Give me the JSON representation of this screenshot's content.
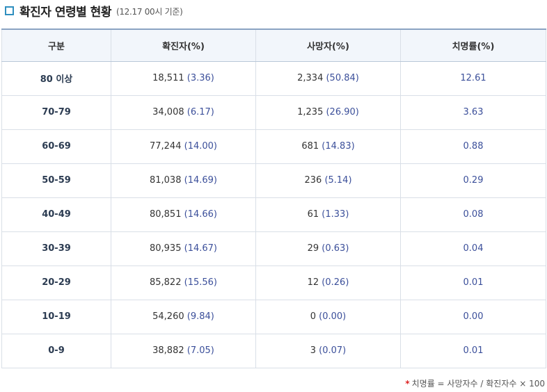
{
  "header": {
    "title": "확진자 연령별 현황",
    "subtitle": "(12.17 00시 기준)"
  },
  "table": {
    "columns": [
      "구분",
      "확진자(%)",
      "사망자(%)",
      "치명률(%)"
    ],
    "rows": [
      {
        "age": "80 이상",
        "confirmed": "18,511",
        "confirmed_pct": "(3.36)",
        "deaths": "2,334",
        "deaths_pct": "(50.84)",
        "fatality": "12.61"
      },
      {
        "age": "70-79",
        "confirmed": "34,008",
        "confirmed_pct": "(6.17)",
        "deaths": "1,235",
        "deaths_pct": "(26.90)",
        "fatality": "3.63"
      },
      {
        "age": "60-69",
        "confirmed": "77,244",
        "confirmed_pct": "(14.00)",
        "deaths": "681",
        "deaths_pct": "(14.83)",
        "fatality": "0.88"
      },
      {
        "age": "50-59",
        "confirmed": "81,038",
        "confirmed_pct": "(14.69)",
        "deaths": "236",
        "deaths_pct": "(5.14)",
        "fatality": "0.29"
      },
      {
        "age": "40-49",
        "confirmed": "80,851",
        "confirmed_pct": "(14.66)",
        "deaths": "61",
        "deaths_pct": "(1.33)",
        "fatality": "0.08"
      },
      {
        "age": "30-39",
        "confirmed": "80,935",
        "confirmed_pct": "(14.67)",
        "deaths": "29",
        "deaths_pct": "(0.63)",
        "fatality": "0.04"
      },
      {
        "age": "20-29",
        "confirmed": "85,822",
        "confirmed_pct": "(15.56)",
        "deaths": "12",
        "deaths_pct": "(0.26)",
        "fatality": "0.01"
      },
      {
        "age": "10-19",
        "confirmed": "54,260",
        "confirmed_pct": "(9.84)",
        "deaths": "0",
        "deaths_pct": "(0.00)",
        "fatality": "0.00"
      },
      {
        "age": "0-9",
        "confirmed": "38,882",
        "confirmed_pct": "(7.05)",
        "deaths": "3",
        "deaths_pct": "(0.07)",
        "fatality": "0.01"
      }
    ]
  },
  "footnote": {
    "marker": "*",
    "text": "치명률 = 사망자수 / 확진자수 × 100"
  },
  "colors": {
    "accent": "#2f8fbf",
    "value_blue": "#3b4f9a",
    "header_bg": "#f2f6fb",
    "footnote_star": "#dd2222"
  }
}
